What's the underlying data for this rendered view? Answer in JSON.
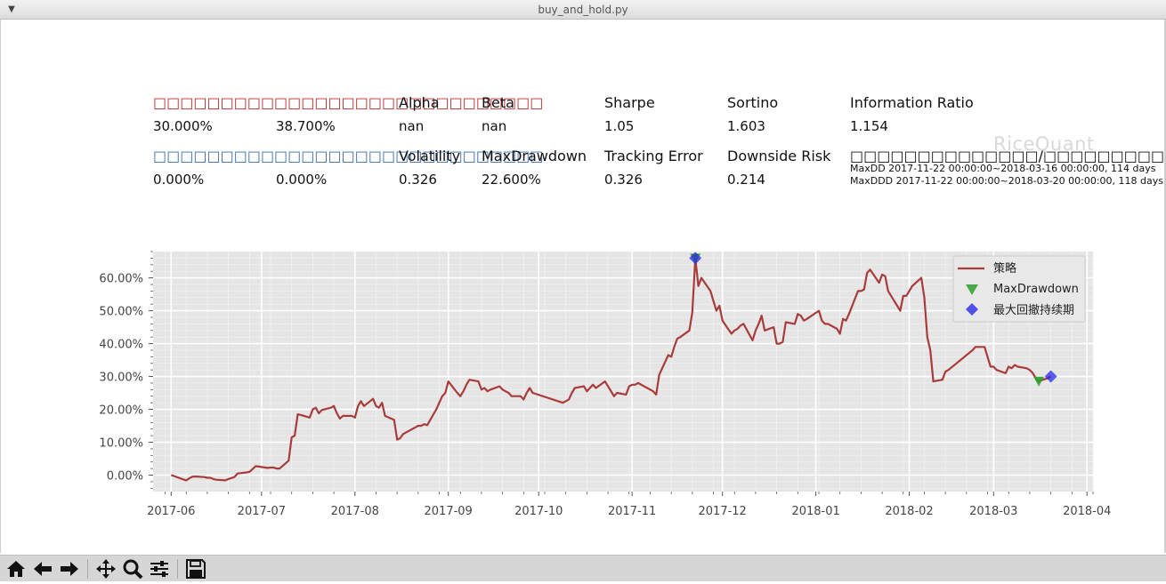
{
  "window": {
    "title": "buy_and_hold.py"
  },
  "summary": {
    "row1": {
      "returns_label": "□□□□□□□□□□□□□□□□□□□□□□□□□□□□□",
      "labels": [
        "Alpha",
        "Beta",
        "Sharpe",
        "Sortino",
        "Information Ratio"
      ],
      "values": [
        "30.000%",
        "38.700%",
        "nan",
        "nan",
        "1.05",
        "1.603",
        "1.154"
      ]
    },
    "row2": {
      "benchmark_label": "□□□□□□□□□□□□□□□□□□□□□□□□□□□□□",
      "labels": [
        "Volatility",
        "MaxDrawdown",
        "Tracking Error",
        "Downside Risk",
        "□□□□□□□□□□□□□□/□□□□□□□□□□□□□□□□□□□□"
      ],
      "values": [
        "0.000%",
        "0.000%",
        "0.326",
        "22.600%",
        "0.326",
        "0.214"
      ]
    },
    "maxdd_text": "MaxDD  2017-11-22 00:00:00~2018-03-16 00:00:00, 114 days",
    "maxddd_text": "MaxDDD 2017-11-22 00:00:00~2018-03-20 00:00:00, 118 days",
    "watermark": "RiceQuant"
  },
  "chart_data": {
    "type": "line",
    "x_type": "date",
    "x_range": [
      "2017-05-26",
      "2018-04-03"
    ],
    "xtick_values": [
      "2017-06-01",
      "2017-07-01",
      "2017-08-01",
      "2017-09-01",
      "2017-10-01",
      "2017-11-01",
      "2017-12-01",
      "2018-01-01",
      "2018-02-01",
      "2018-03-01",
      "2018-04-01"
    ],
    "xtick_labels": [
      "2017-06",
      "2017-07",
      "2017-08",
      "2017-09",
      "2017-10",
      "2017-11",
      "2017-12",
      "2018-01",
      "2018-02",
      "2018-03",
      "2018-04"
    ],
    "ylim": [
      -0.05,
      0.68
    ],
    "ytick_values": [
      0,
      0.1,
      0.2,
      0.3,
      0.4,
      0.5,
      0.6
    ],
    "ytick_labels": [
      "0.00%",
      "10.00%",
      "20.00%",
      "30.00%",
      "40.00%",
      "50.00%",
      "60.00%"
    ],
    "grid": true,
    "legend_position": "top-right",
    "colors": {
      "strategy": "#aa3b3b",
      "maxdd": "#2ca02c",
      "maxddd": "#2a2ae6",
      "plot_bg": "#e5e5e5"
    },
    "series": [
      {
        "name": "策略",
        "points": [
          [
            "2017-06-01",
            0.0
          ],
          [
            "2017-06-02",
            -0.003
          ],
          [
            "2017-06-05",
            -0.013
          ],
          [
            "2017-06-06",
            -0.016
          ],
          [
            "2017-06-07",
            -0.01
          ],
          [
            "2017-06-08",
            -0.005
          ],
          [
            "2017-06-09",
            -0.004
          ],
          [
            "2017-06-12",
            -0.006
          ],
          [
            "2017-06-13",
            -0.008
          ],
          [
            "2017-06-14",
            -0.008
          ],
          [
            "2017-06-15",
            -0.012
          ],
          [
            "2017-06-16",
            -0.014
          ],
          [
            "2017-06-19",
            -0.016
          ],
          [
            "2017-06-20",
            -0.012
          ],
          [
            "2017-06-21",
            -0.009
          ],
          [
            "2017-06-22",
            -0.006
          ],
          [
            "2017-06-23",
            0.005
          ],
          [
            "2017-06-26",
            0.008
          ],
          [
            "2017-06-27",
            0.01
          ],
          [
            "2017-06-28",
            0.018
          ],
          [
            "2017-06-29",
            0.027
          ],
          [
            "2017-06-30",
            0.026
          ],
          [
            "2017-07-03",
            0.022
          ],
          [
            "2017-07-04",
            0.023
          ],
          [
            "2017-07-05",
            0.023
          ],
          [
            "2017-07-06",
            0.02
          ],
          [
            "2017-07-07",
            0.02
          ],
          [
            "2017-07-10",
            0.044
          ],
          [
            "2017-07-11",
            0.115
          ],
          [
            "2017-07-12",
            0.12
          ],
          [
            "2017-07-13",
            0.185
          ],
          [
            "2017-07-14",
            0.183
          ],
          [
            "2017-07-17",
            0.175
          ],
          [
            "2017-07-18",
            0.2
          ],
          [
            "2017-07-19",
            0.205
          ],
          [
            "2017-07-20",
            0.188
          ],
          [
            "2017-07-21",
            0.198
          ],
          [
            "2017-07-24",
            0.205
          ],
          [
            "2017-07-25",
            0.21
          ],
          [
            "2017-07-26",
            0.188
          ],
          [
            "2017-07-27",
            0.172
          ],
          [
            "2017-07-28",
            0.18
          ],
          [
            "2017-07-31",
            0.18
          ],
          [
            "2017-08-01",
            0.175
          ],
          [
            "2017-08-02",
            0.21
          ],
          [
            "2017-08-03",
            0.225
          ],
          [
            "2017-08-04",
            0.21
          ],
          [
            "2017-08-07",
            0.232
          ],
          [
            "2017-08-08",
            0.21
          ],
          [
            "2017-08-09",
            0.205
          ],
          [
            "2017-08-10",
            0.22
          ],
          [
            "2017-08-11",
            0.18
          ],
          [
            "2017-08-14",
            0.168
          ],
          [
            "2017-08-15",
            0.108
          ],
          [
            "2017-08-16",
            0.112
          ],
          [
            "2017-08-17",
            0.125
          ],
          [
            "2017-08-18",
            0.13
          ],
          [
            "2017-08-21",
            0.145
          ],
          [
            "2017-08-22",
            0.15
          ],
          [
            "2017-08-23",
            0.15
          ],
          [
            "2017-08-24",
            0.155
          ],
          [
            "2017-08-25",
            0.152
          ],
          [
            "2017-08-28",
            0.2
          ],
          [
            "2017-08-29",
            0.22
          ],
          [
            "2017-08-30",
            0.24
          ],
          [
            "2017-08-31",
            0.25
          ],
          [
            "2017-09-01",
            0.285
          ],
          [
            "2017-09-04",
            0.25
          ],
          [
            "2017-09-05",
            0.24
          ],
          [
            "2017-09-06",
            0.255
          ],
          [
            "2017-09-07",
            0.275
          ],
          [
            "2017-09-08",
            0.29
          ],
          [
            "2017-09-11",
            0.285
          ],
          [
            "2017-09-12",
            0.26
          ],
          [
            "2017-09-13",
            0.265
          ],
          [
            "2017-09-14",
            0.255
          ],
          [
            "2017-09-15",
            0.26
          ],
          [
            "2017-09-18",
            0.27
          ],
          [
            "2017-09-19",
            0.26
          ],
          [
            "2017-09-20",
            0.255
          ],
          [
            "2017-09-21",
            0.25
          ],
          [
            "2017-09-22",
            0.24
          ],
          [
            "2017-09-25",
            0.24
          ],
          [
            "2017-09-26",
            0.23
          ],
          [
            "2017-09-27",
            0.25
          ],
          [
            "2017-09-28",
            0.265
          ],
          [
            "2017-09-29",
            0.25
          ],
          [
            "2017-10-09",
            0.22
          ],
          [
            "2017-10-10",
            0.225
          ],
          [
            "2017-10-11",
            0.23
          ],
          [
            "2017-10-12",
            0.25
          ],
          [
            "2017-10-13",
            0.265
          ],
          [
            "2017-10-16",
            0.27
          ],
          [
            "2017-10-17",
            0.255
          ],
          [
            "2017-10-18",
            0.265
          ],
          [
            "2017-10-19",
            0.275
          ],
          [
            "2017-10-20",
            0.265
          ],
          [
            "2017-10-23",
            0.285
          ],
          [
            "2017-10-24",
            0.27
          ],
          [
            "2017-10-25",
            0.255
          ],
          [
            "2017-10-26",
            0.24
          ],
          [
            "2017-10-27",
            0.25
          ],
          [
            "2017-10-30",
            0.245
          ],
          [
            "2017-10-31",
            0.27
          ],
          [
            "2017-11-01",
            0.275
          ],
          [
            "2017-11-02",
            0.275
          ],
          [
            "2017-11-03",
            0.28
          ],
          [
            "2017-11-06",
            0.265
          ],
          [
            "2017-11-07",
            0.26
          ],
          [
            "2017-11-08",
            0.255
          ],
          [
            "2017-11-09",
            0.245
          ],
          [
            "2017-11-10",
            0.305
          ],
          [
            "2017-11-13",
            0.365
          ],
          [
            "2017-11-14",
            0.36
          ],
          [
            "2017-11-15",
            0.39
          ],
          [
            "2017-11-16",
            0.415
          ],
          [
            "2017-11-17",
            0.42
          ],
          [
            "2017-11-20",
            0.44
          ],
          [
            "2017-11-21",
            0.495
          ],
          [
            "2017-11-22",
            0.66
          ],
          [
            "2017-11-23",
            0.575
          ],
          [
            "2017-11-24",
            0.6
          ],
          [
            "2017-11-27",
            0.56
          ],
          [
            "2017-11-28",
            0.53
          ],
          [
            "2017-11-29",
            0.5
          ],
          [
            "2017-11-30",
            0.515
          ],
          [
            "2017-12-01",
            0.47
          ],
          [
            "2017-12-04",
            0.43
          ],
          [
            "2017-12-05",
            0.44
          ],
          [
            "2017-12-06",
            0.445
          ],
          [
            "2017-12-07",
            0.455
          ],
          [
            "2017-12-08",
            0.46
          ],
          [
            "2017-12-11",
            0.41
          ],
          [
            "2017-12-12",
            0.44
          ],
          [
            "2017-12-13",
            0.46
          ],
          [
            "2017-12-14",
            0.485
          ],
          [
            "2017-12-15",
            0.44
          ],
          [
            "2017-12-18",
            0.45
          ],
          [
            "2017-12-19",
            0.4
          ],
          [
            "2017-12-20",
            0.4
          ],
          [
            "2017-12-21",
            0.405
          ],
          [
            "2017-12-22",
            0.465
          ],
          [
            "2017-12-25",
            0.46
          ],
          [
            "2017-12-26",
            0.49
          ],
          [
            "2017-12-27",
            0.485
          ],
          [
            "2017-12-28",
            0.47
          ],
          [
            "2017-12-29",
            0.475
          ],
          [
            "2018-01-02",
            0.5
          ],
          [
            "2018-01-03",
            0.47
          ],
          [
            "2018-01-04",
            0.46
          ],
          [
            "2018-01-05",
            0.46
          ],
          [
            "2018-01-08",
            0.445
          ],
          [
            "2018-01-09",
            0.43
          ],
          [
            "2018-01-10",
            0.475
          ],
          [
            "2018-01-11",
            0.47
          ],
          [
            "2018-01-12",
            0.49
          ],
          [
            "2018-01-15",
            0.56
          ],
          [
            "2018-01-16",
            0.56
          ],
          [
            "2018-01-17",
            0.565
          ],
          [
            "2018-01-18",
            0.615
          ],
          [
            "2018-01-19",
            0.625
          ],
          [
            "2018-01-22",
            0.585
          ],
          [
            "2018-01-23",
            0.61
          ],
          [
            "2018-01-24",
            0.605
          ],
          [
            "2018-01-25",
            0.56
          ],
          [
            "2018-01-26",
            0.545
          ],
          [
            "2018-01-29",
            0.5
          ],
          [
            "2018-01-30",
            0.545
          ],
          [
            "2018-01-31",
            0.545
          ],
          [
            "2018-02-01",
            0.56
          ],
          [
            "2018-02-02",
            0.575
          ],
          [
            "2018-02-05",
            0.6
          ],
          [
            "2018-02-06",
            0.54
          ],
          [
            "2018-02-07",
            0.42
          ],
          [
            "2018-02-08",
            0.38
          ],
          [
            "2018-02-09",
            0.285
          ],
          [
            "2018-02-12",
            0.29
          ],
          [
            "2018-02-13",
            0.315
          ],
          [
            "2018-02-14",
            0.32
          ],
          [
            "2018-02-22",
            0.38
          ],
          [
            "2018-02-23",
            0.39
          ],
          [
            "2018-02-26",
            0.39
          ],
          [
            "2018-02-27",
            0.36
          ],
          [
            "2018-02-28",
            0.33
          ],
          [
            "2018-03-01",
            0.33
          ],
          [
            "2018-03-02",
            0.32
          ],
          [
            "2018-03-05",
            0.31
          ],
          [
            "2018-03-06",
            0.33
          ],
          [
            "2018-03-07",
            0.325
          ],
          [
            "2018-03-08",
            0.335
          ],
          [
            "2018-03-09",
            0.33
          ],
          [
            "2018-03-12",
            0.325
          ],
          [
            "2018-03-13",
            0.32
          ],
          [
            "2018-03-14",
            0.31
          ],
          [
            "2018-03-15",
            0.295
          ],
          [
            "2018-03-16",
            0.286
          ],
          [
            "2018-03-19",
            0.295
          ],
          [
            "2018-03-20",
            0.3
          ]
        ]
      }
    ],
    "markers": [
      {
        "name": "MaxDrawdown",
        "shape": "triangle-down",
        "points": [
          [
            "2017-11-22",
            0.66
          ],
          [
            "2018-03-16",
            0.286
          ]
        ]
      },
      {
        "name": "最大回撤持续期",
        "shape": "diamond",
        "points": [
          [
            "2017-11-22",
            0.66
          ],
          [
            "2018-03-20",
            0.3
          ]
        ]
      }
    ],
    "legend": [
      "策略",
      "MaxDrawdown",
      "最大回撤持续期"
    ]
  }
}
